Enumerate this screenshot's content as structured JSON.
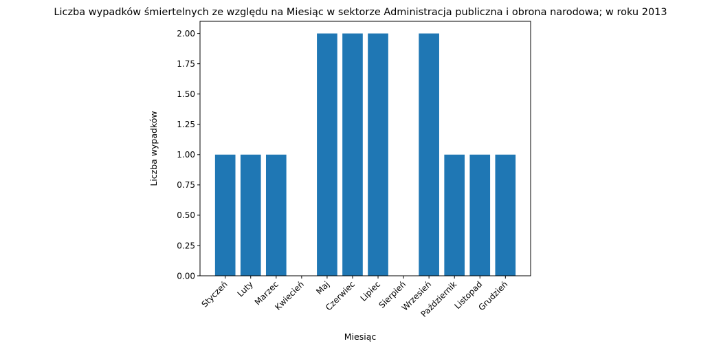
{
  "chart_data": {
    "type": "bar",
    "title": "Liczba wypadków śmiertelnych ze względu na Miesiąc w sektorze Administracja publiczna i obrona narodowa; w roku 2013",
    "xlabel": "Miesiąc",
    "ylabel": "Liczba wypadków",
    "categories": [
      "Styczeń",
      "Luty",
      "Marzec",
      "Kwiecień",
      "Maj",
      "Czerwiec",
      "Lipiec",
      "Sierpień",
      "Wrzesień",
      "Październik",
      "Listopad",
      "Grudzień"
    ],
    "values": [
      1,
      1,
      1,
      0,
      2,
      2,
      2,
      0,
      2,
      1,
      1,
      1
    ],
    "ylim": [
      0,
      2.1
    ],
    "yticks": [
      "0.00",
      "0.25",
      "0.50",
      "0.75",
      "1.00",
      "1.25",
      "1.50",
      "1.75",
      "2.00"
    ],
    "grid": false,
    "bar_color": "#1f77b4"
  }
}
